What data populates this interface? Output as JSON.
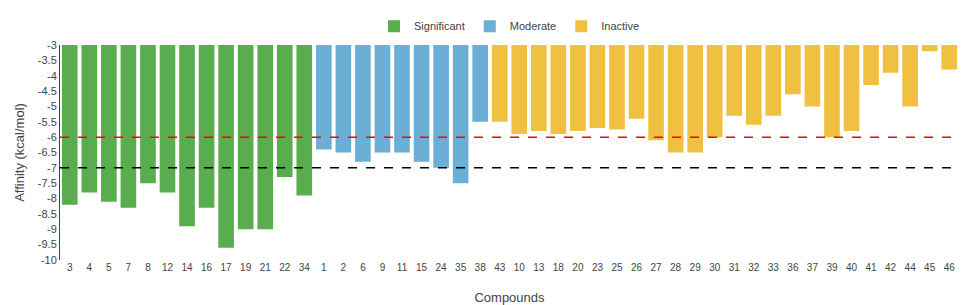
{
  "chart_data": {
    "type": "bar",
    "categories": [
      "3",
      "4",
      "5",
      "7",
      "8",
      "12",
      "14",
      "16",
      "17",
      "19",
      "21",
      "22",
      "34",
      "1",
      "2",
      "6",
      "9",
      "11",
      "15",
      "24",
      "35",
      "38",
      "43",
      "10",
      "13",
      "18",
      "20",
      "23",
      "25",
      "26",
      "27",
      "28",
      "29",
      "30",
      "31",
      "32",
      "33",
      "36",
      "37",
      "39",
      "40",
      "41",
      "42",
      "44",
      "45",
      "46"
    ],
    "series": [
      {
        "name": "Significant",
        "color": "#5aad4e",
        "values": [
          -8.2,
          -7.8,
          -8.1,
          -8.3,
          -7.5,
          -7.8,
          -8.9,
          -8.3,
          -9.6,
          -9.0,
          -9.0,
          -7.3,
          -7.9,
          null,
          null,
          null,
          null,
          null,
          null,
          null,
          null,
          null,
          null,
          null,
          null,
          null,
          null,
          null,
          null,
          null,
          null,
          null,
          null,
          null,
          null,
          null,
          null,
          null,
          null,
          null,
          null,
          null,
          null,
          null,
          null,
          null
        ]
      },
      {
        "name": "Moderate",
        "color": "#6baed6",
        "values": [
          null,
          null,
          null,
          null,
          null,
          null,
          null,
          null,
          null,
          null,
          null,
          null,
          null,
          -6.4,
          -6.5,
          -6.8,
          -6.5,
          -6.5,
          -6.8,
          -7.0,
          -7.5,
          -5.5,
          null,
          null,
          null,
          null,
          null,
          null,
          null,
          null,
          null,
          null,
          null,
          null,
          null,
          null,
          null,
          null,
          null,
          null,
          null,
          null,
          null,
          null,
          null,
          null
        ]
      },
      {
        "name": "Inactive",
        "color": "#f0c040",
        "values": [
          null,
          null,
          null,
          null,
          null,
          null,
          null,
          null,
          null,
          null,
          null,
          null,
          null,
          null,
          null,
          null,
          null,
          null,
          null,
          null,
          null,
          null,
          -5.5,
          -5.9,
          -5.8,
          -5.9,
          -5.8,
          -5.7,
          -5.75,
          -5.4,
          -6.1,
          -6.5,
          -6.5,
          -6.0,
          -5.3,
          -5.6,
          -5.3,
          -4.6,
          -5.0,
          -6.0,
          -5.8,
          -4.3,
          -3.9,
          -5.0,
          -3.2,
          -3.8
        ]
      }
    ],
    "hlines": [
      {
        "y": -7.0,
        "color": "black",
        "line_style": "dashed"
      },
      {
        "y": -6.0,
        "color": "red",
        "line_style": "dashed"
      }
    ],
    "xlabel": "Compounds",
    "ylabel": "Affinity (kcal/mol)",
    "ylim": [
      -10.0,
      -3.0
    ],
    "yticks": [
      -10.0,
      -9.5,
      -9.0,
      -8.5,
      -8.0,
      -7.5,
      -7.0,
      -6.5,
      -6.0,
      -5.5,
      -5.0,
      -4.5,
      -4.0,
      -3.5,
      -3.0
    ],
    "grid": false,
    "legend": "upper center"
  }
}
